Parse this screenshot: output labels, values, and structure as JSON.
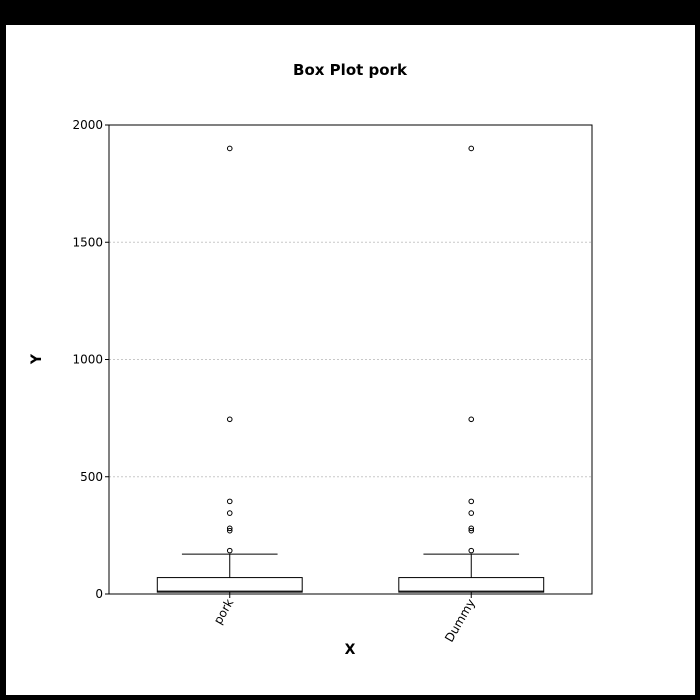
{
  "chart_data": {
    "type": "box",
    "title": "Box Plot pork",
    "xlabel": "X",
    "ylabel": "Y",
    "ylim": [
      0,
      2000
    ],
    "yticks": [
      0,
      500,
      1000,
      1500,
      2000
    ],
    "grid": true,
    "categories": [
      "pork",
      "Dummy"
    ],
    "boxes": [
      {
        "name": "pork",
        "whisker_low": 0,
        "q1": 8,
        "median": 12,
        "q3": 70,
        "whisker_high": 170,
        "outliers": [
          185,
          270,
          280,
          345,
          395,
          745,
          1900
        ]
      },
      {
        "name": "Dummy",
        "whisker_low": 0,
        "q1": 8,
        "median": 12,
        "q3": 70,
        "whisker_high": 170,
        "outliers": [
          185,
          270,
          280,
          345,
          395,
          745,
          1900
        ]
      }
    ]
  }
}
